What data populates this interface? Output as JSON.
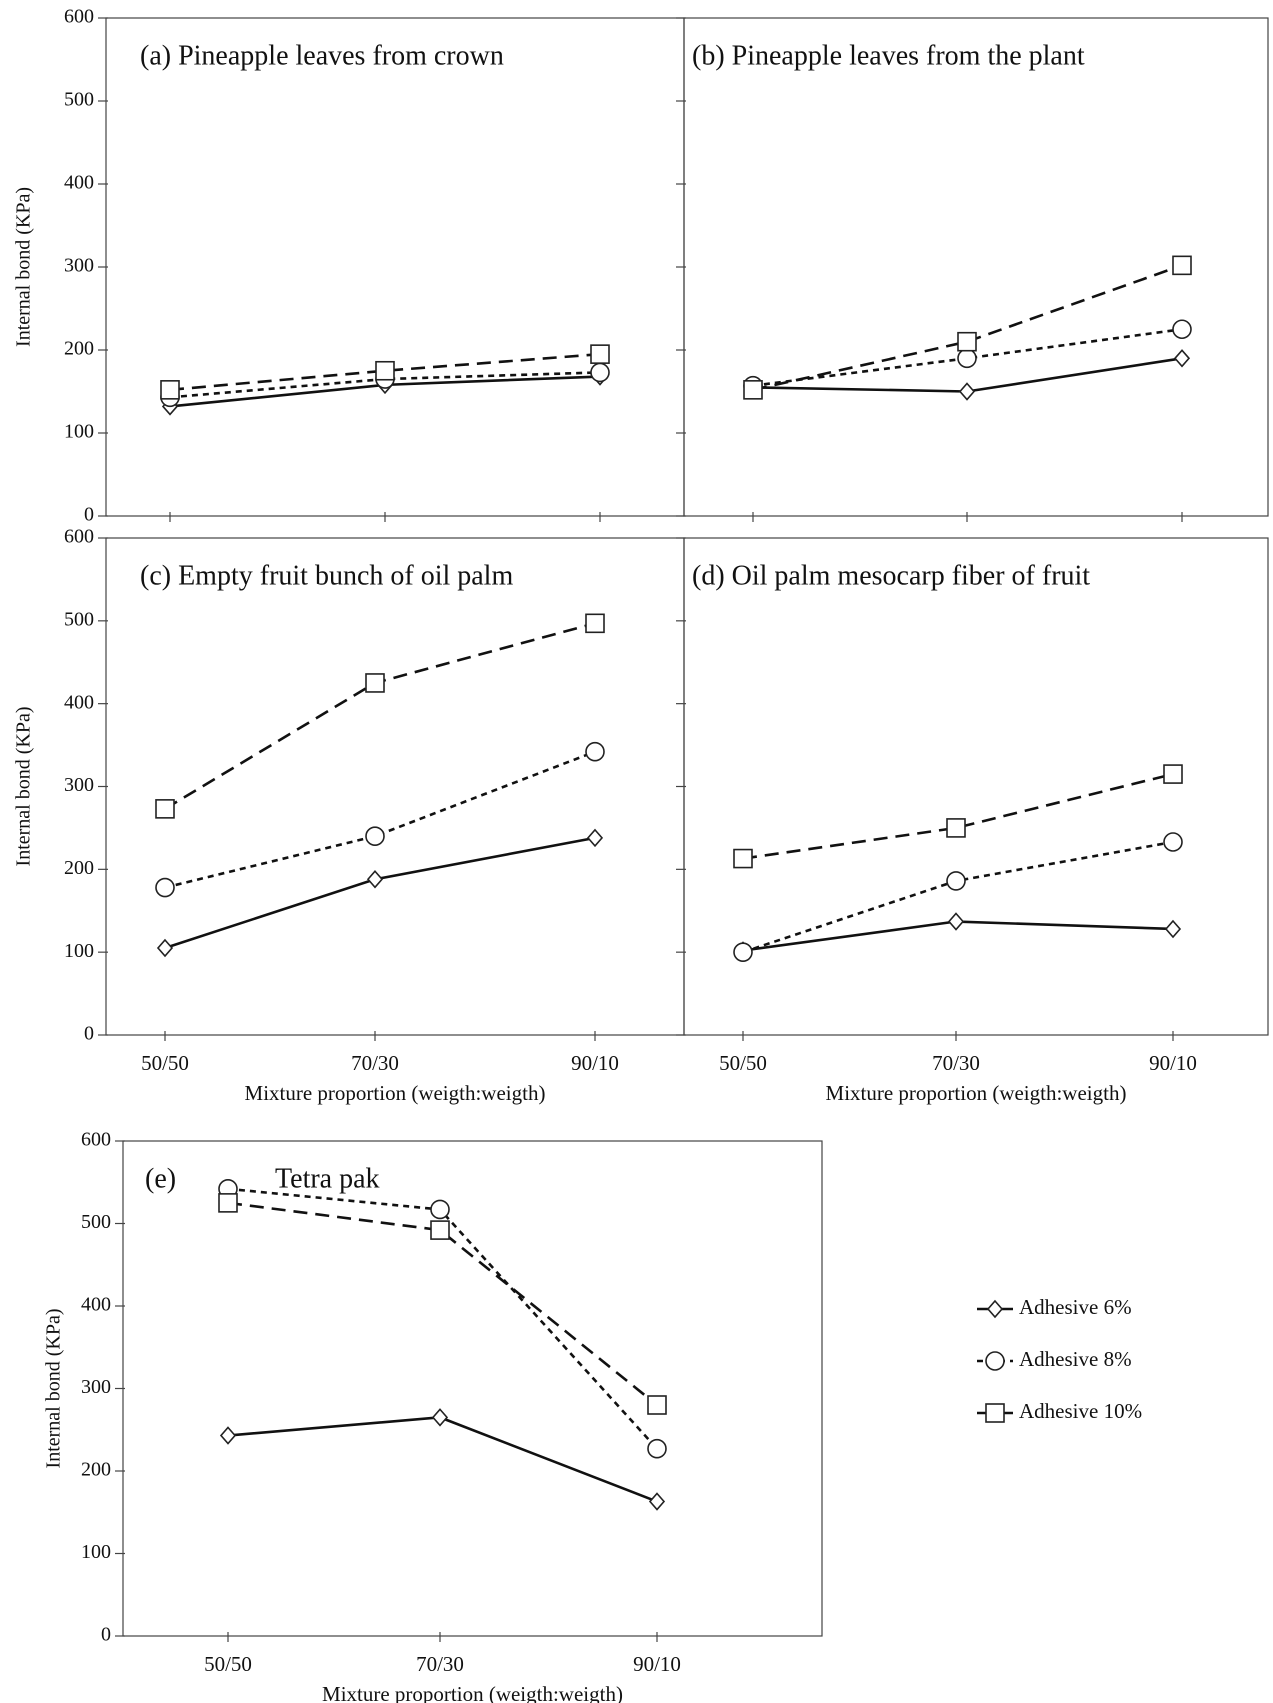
{
  "chart_data": [
    {
      "type": "line",
      "title": "(a) Pineapple leaves from crown",
      "y_label": "Internal bond (KPa)",
      "categories": [
        null,
        null,
        null
      ],
      "ylim": [
        0,
        600
      ],
      "yticks": [
        0,
        100,
        200,
        300,
        400,
        500,
        600
      ],
      "ytick_labels": true,
      "series": [
        {
          "values": [
            132,
            158,
            168
          ]
        },
        {
          "values": [
            143,
            165,
            173
          ]
        },
        {
          "values": [
            152,
            175,
            195
          ]
        }
      ]
    },
    {
      "type": "line",
      "title": "(b) Pineapple leaves from the plant",
      "categories": [
        null,
        null,
        null
      ],
      "ylim": [
        0,
        600
      ],
      "yticks": [
        0,
        100,
        200,
        300,
        400,
        500,
        600
      ],
      "ytick_labels": false,
      "series": [
        {
          "values": [
            155,
            150,
            190
          ]
        },
        {
          "values": [
            157,
            190,
            225
          ]
        },
        {
          "values": [
            152,
            210,
            302
          ]
        }
      ]
    },
    {
      "type": "line",
      "title": "(c) Empty fruit bunch of oil palm",
      "y_label": "Internal bond (KPa)",
      "x_label": "Mixture proportion (weigth:weigth)",
      "categories": [
        "50/50",
        "70/30",
        "90/10"
      ],
      "ylim": [
        0,
        600
      ],
      "yticks": [
        0,
        100,
        200,
        300,
        400,
        500,
        600
      ],
      "ytick_labels": true,
      "series": [
        {
          "values": [
            105,
            188,
            238
          ]
        },
        {
          "values": [
            178,
            240,
            342
          ]
        },
        {
          "values": [
            273,
            425,
            497
          ]
        }
      ]
    },
    {
      "type": "line",
      "title": "(d) Oil palm mesocarp fiber of fruit",
      "x_label": "Mixture proportion (weigth:weigth)",
      "categories": [
        "50/50",
        "70/30",
        "90/10"
      ],
      "ylim": [
        0,
        600
      ],
      "yticks": [
        0,
        100,
        200,
        300,
        400,
        500,
        600
      ],
      "ytick_labels": false,
      "series": [
        {
          "values": [
            102,
            137,
            128
          ]
        },
        {
          "values": [
            100,
            186,
            233
          ]
        },
        {
          "values": [
            213,
            250,
            315
          ]
        }
      ]
    },
    {
      "type": "line",
      "title": "(e)",
      "subtitle": "Tetra pak",
      "y_label": "Internal bond (KPa)",
      "x_label": "Mixture proportion (weigth:weigth)",
      "categories": [
        "50/50",
        "70/30",
        "90/10"
      ],
      "ylim": [
        0,
        600
      ],
      "yticks": [
        0,
        100,
        200,
        300,
        400,
        500,
        600
      ],
      "ytick_labels": true,
      "series": [
        {
          "values": [
            243,
            265,
            163
          ]
        },
        {
          "values": [
            542,
            517,
            227
          ]
        },
        {
          "values": [
            525,
            492,
            280
          ]
        }
      ]
    }
  ],
  "legend": [
    {
      "name": "Adhesive 6%",
      "marker": "diamond",
      "dash": "solid"
    },
    {
      "name": "Adhesive 8%",
      "marker": "circle",
      "dash": "dotted"
    },
    {
      "name": "Adhesive 10%",
      "marker": "square",
      "dash": "dashed"
    }
  ]
}
